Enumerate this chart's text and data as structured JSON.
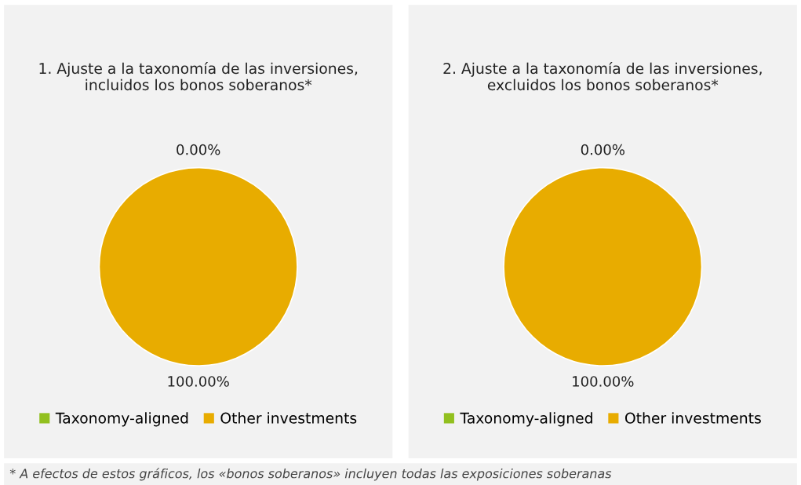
{
  "chart_data": [
    {
      "type": "pie",
      "title": "1. Ajuste a la taxonomía de las inversiones, incluidos los bonos soberanos*",
      "categories": [
        "Taxonomy-aligned",
        "Other investments"
      ],
      "values": [
        0,
        100
      ],
      "colors": [
        "#92c01f",
        "#e8ac00"
      ],
      "value_labels": [
        "0.00%",
        "100.00%"
      ],
      "legend": "bottom",
      "annotations": [
        "* A efectos de estos gráficos, los «bonos soberanos» incluyen todas las exposiciones soberanas"
      ]
    },
    {
      "type": "pie",
      "title": "2. Ajuste a la taxonomía de las inversiones, excluidos los bonos soberanos*",
      "categories": [
        "Taxonomy-aligned",
        "Other investments"
      ],
      "values": [
        0,
        100
      ],
      "colors": [
        "#92c01f",
        "#e8ac00"
      ],
      "value_labels": [
        "0.00%",
        "100.00%"
      ],
      "legend": "bottom"
    }
  ]
}
